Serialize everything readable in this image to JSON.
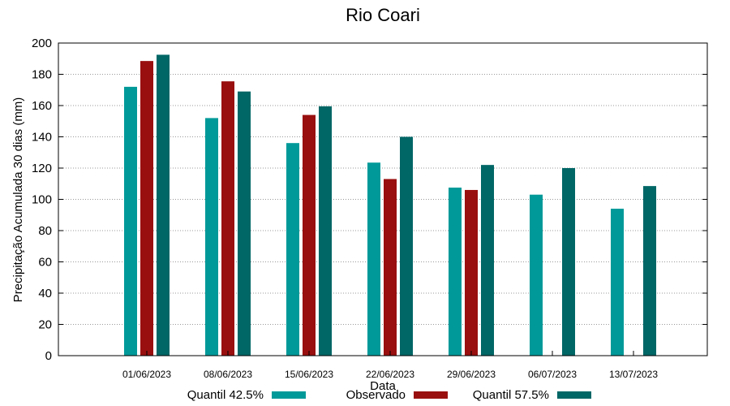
{
  "chart_data": {
    "type": "bar",
    "title": "Rio Coari",
    "xlabel": "Data",
    "ylabel": "Precipitação Acumulada 30 dias (mm)",
    "ylim": [
      0,
      200
    ],
    "yticks": [
      0,
      20,
      40,
      60,
      80,
      100,
      120,
      140,
      160,
      180,
      200
    ],
    "grid": true,
    "legend_position": "bottom",
    "categories": [
      "01/06/2023",
      "08/06/2023",
      "15/06/2023",
      "22/06/2023",
      "29/06/2023",
      "06/07/2023",
      "13/07/2023"
    ],
    "series": [
      {
        "name": "Quantil 42.5%",
        "color": "#009999",
        "values": [
          172,
          152,
          136,
          123.5,
          107.5,
          103,
          94
        ]
      },
      {
        "name": "Observado",
        "color": "#990f0f",
        "values": [
          188.5,
          175.5,
          154,
          113,
          106,
          null,
          null
        ]
      },
      {
        "name": "Quantil 57.5%",
        "color": "#006666",
        "values": [
          192.5,
          169,
          159.5,
          140,
          122,
          120,
          108.5
        ]
      }
    ]
  }
}
